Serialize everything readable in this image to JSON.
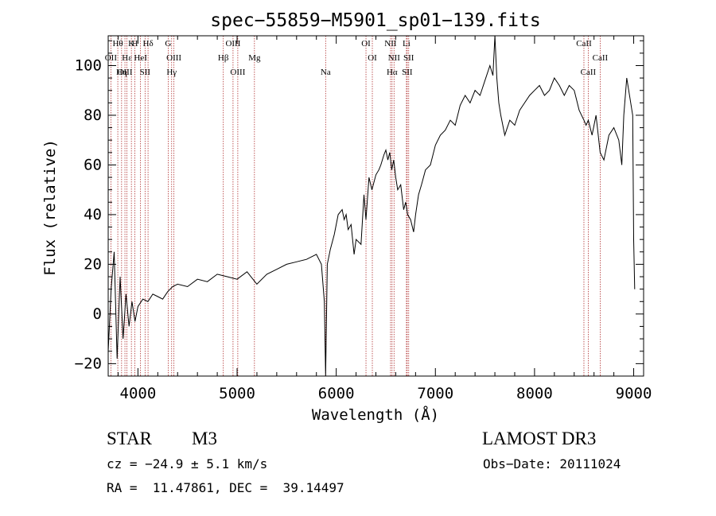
{
  "chart_data": {
    "type": "line",
    "title": "spec−55859−M5901_sp01−139.fits",
    "xlabel": "Wavelength (Å)",
    "ylabel": "Flux (relative)",
    "xlim": [
      3700,
      9100
    ],
    "ylim": [
      -25,
      112
    ],
    "x_ticks": [
      4000,
      5000,
      6000,
      7000,
      8000,
      9000
    ],
    "x_tick_labels": [
      "4000",
      "5000",
      "6000",
      "7000",
      "8000",
      "9000"
    ],
    "y_ticks": [
      -20,
      0,
      20,
      40,
      60,
      80,
      100
    ],
    "y_tick_labels": [
      "−20",
      "0",
      "20",
      "40",
      "60",
      "80",
      "100"
    ],
    "series": [
      {
        "name": "flux",
        "x": [
          3700,
          3730,
          3760,
          3790,
          3820,
          3850,
          3880,
          3910,
          3940,
          3970,
          4000,
          4050,
          4100,
          4150,
          4200,
          4250,
          4300,
          4350,
          4400,
          4500,
          4600,
          4700,
          4800,
          4900,
          5000,
          5100,
          5200,
          5300,
          5400,
          5500,
          5600,
          5700,
          5800,
          5850,
          5880,
          5893,
          5910,
          5940,
          5980,
          6020,
          6060,
          6080,
          6100,
          6120,
          6150,
          6180,
          6200,
          6250,
          6280,
          6300,
          6330,
          6360,
          6400,
          6430,
          6450,
          6480,
          6500,
          6520,
          6540,
          6560,
          6580,
          6600,
          6620,
          6650,
          6680,
          6700,
          6720,
          6750,
          6780,
          6800,
          6830,
          6860,
          6880,
          6900,
          6950,
          7000,
          7050,
          7100,
          7150,
          7200,
          7250,
          7300,
          7350,
          7400,
          7450,
          7500,
          7550,
          7580,
          7600,
          7620,
          7640,
          7660,
          7700,
          7750,
          7800,
          7850,
          7900,
          7950,
          8000,
          8050,
          8100,
          8150,
          8200,
          8250,
          8300,
          8350,
          8400,
          8450,
          8498,
          8520,
          8542,
          8580,
          8620,
          8662,
          8700,
          8750,
          8800,
          8850,
          8880,
          8900,
          8930,
          8950,
          8970,
          8990,
          9000,
          9010
        ],
        "y": [
          -15,
          10,
          25,
          -18,
          15,
          -10,
          8,
          -5,
          5,
          -3,
          3,
          6,
          5,
          8,
          7,
          6,
          9,
          11,
          12,
          11,
          14,
          13,
          16,
          15,
          14,
          17,
          12,
          16,
          18,
          20,
          21,
          22,
          24,
          20,
          5,
          -25,
          20,
          26,
          32,
          40,
          42,
          38,
          40,
          34,
          36,
          24,
          30,
          28,
          48,
          38,
          55,
          50,
          56,
          58,
          60,
          64,
          66,
          62,
          65,
          58,
          62,
          55,
          50,
          52,
          42,
          45,
          40,
          38,
          33,
          40,
          48,
          52,
          55,
          58,
          60,
          68,
          72,
          74,
          78,
          76,
          84,
          88,
          85,
          90,
          88,
          94,
          100,
          96,
          112,
          95,
          85,
          80,
          72,
          78,
          76,
          82,
          85,
          88,
          90,
          92,
          88,
          90,
          95,
          92,
          88,
          92,
          90,
          82,
          78,
          76,
          78,
          72,
          80,
          65,
          62,
          72,
          75,
          70,
          60,
          80,
          95,
          90,
          85,
          80,
          30,
          10
        ]
      }
    ],
    "lines": [
      {
        "label": "Hθ",
        "wl": 3797
      },
      {
        "label": "OII",
        "wl": 3727
      },
      {
        "label": "OIII",
        "wl": 3869
      },
      {
        "label": "K",
        "wl": 3934
      },
      {
        "label": "Hε",
        "wl": 3889
      },
      {
        "label": "Hη",
        "wl": 3835
      },
      {
        "label": "H",
        "wl": 3969
      },
      {
        "label": "HeI",
        "wl": 4026
      },
      {
        "label": "SII",
        "wl": 4072
      },
      {
        "label": "Hδ",
        "wl": 4102
      },
      {
        "label": "OIII",
        "wl": 4363
      },
      {
        "label": "Hγ",
        "wl": 4340
      },
      {
        "label": "G",
        "wl": 4305
      },
      {
        "label": "Hβ",
        "wl": 4861
      },
      {
        "label": "OIII",
        "wl": 5007
      },
      {
        "label": "OIII",
        "wl": 4959
      },
      {
        "label": "Mg",
        "wl": 5175
      },
      {
        "label": "Na",
        "wl": 5893
      },
      {
        "label": "OI",
        "wl": 6300
      },
      {
        "label": "OI",
        "wl": 6364
      },
      {
        "label": "Hα",
        "wl": 6563
      },
      {
        "label": "NII",
        "wl": 6548
      },
      {
        "label": "NII",
        "wl": 6583
      },
      {
        "label": "SII",
        "wl": 6716
      },
      {
        "label": "Li",
        "wl": 6708
      },
      {
        "label": "SII",
        "wl": 6731
      },
      {
        "label": "CaII",
        "wl": 8542
      },
      {
        "label": "CaII",
        "wl": 8498
      },
      {
        "label": "CaII",
        "wl": 8662
      }
    ]
  },
  "info": {
    "class": "STAR",
    "subclass": "M3",
    "survey": "LAMOST DR3",
    "cz": "cz = −24.9 ± 5.1 km/s",
    "obs_date": "Obs−Date: 20111024",
    "coords": "RA =  11.47861, DEC =  39.14497"
  }
}
